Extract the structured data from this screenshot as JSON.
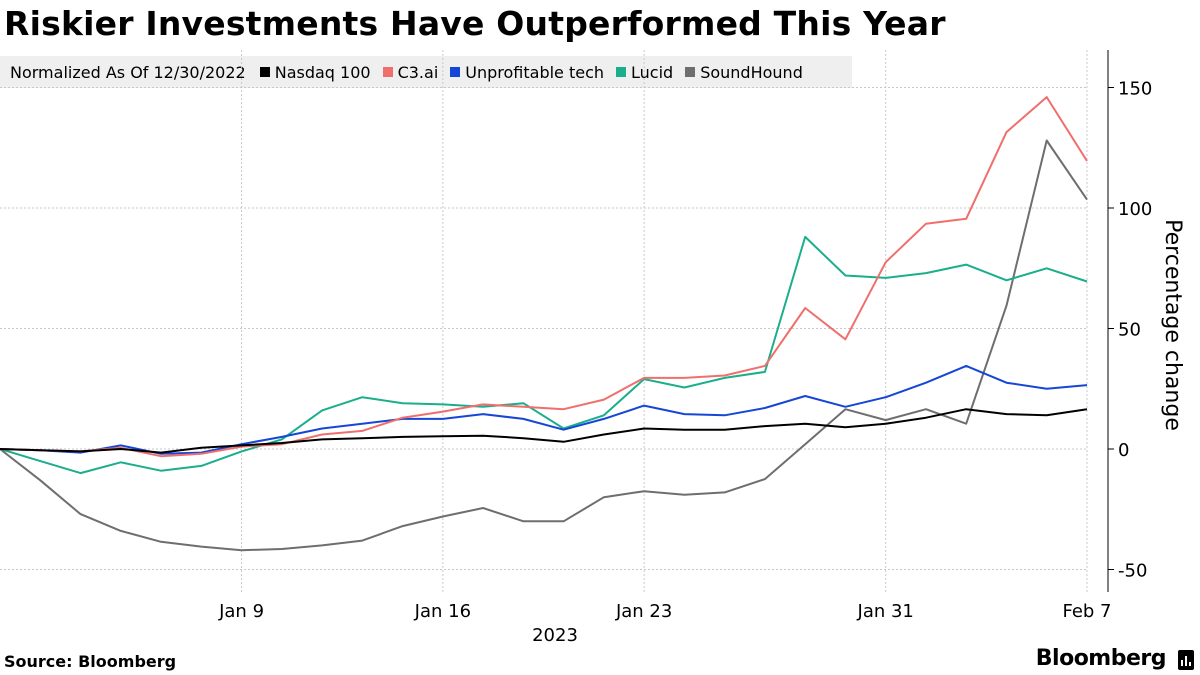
{
  "title": "Riskier Investments Have Outperformed This Year",
  "legend": {
    "note": "Normalized As Of 12/30/2022"
  },
  "chart_data": {
    "type": "line",
    "title": "Riskier Investments Have Outperformed This Year",
    "subtitle": "Normalized As Of 12/30/2022",
    "xlabel": "2023",
    "ylabel": "Percentage change",
    "ylim": [
      -60,
      165
    ],
    "xlim": [
      0,
      27
    ],
    "yticks": [
      -50,
      0,
      50,
      100,
      150
    ],
    "xticks": [
      {
        "x": 6,
        "label": "Jan 9"
      },
      {
        "x": 11,
        "label": "Jan 16"
      },
      {
        "x": 16,
        "label": "Jan 23"
      },
      {
        "x": 22,
        "label": "Jan 31"
      },
      {
        "x": 27,
        "label": "Feb 7"
      }
    ],
    "grid": true,
    "legend_position": "top",
    "series": [
      {
        "name": "Nasdaq 100",
        "color": "#000000",
        "values": [
          0,
          -0.5,
          -1,
          0,
          -1.5,
          0.5,
          1.5,
          2.5,
          4,
          4.5,
          5,
          5.3,
          5.5,
          4.5,
          3,
          6,
          8.5,
          8,
          8,
          9.5,
          10.5,
          9,
          10.5,
          13,
          16.5,
          14.5,
          14,
          16.5
        ]
      },
      {
        "name": "C3.ai",
        "color": "#ef6f6c",
        "values": [
          0,
          -0.5,
          -1,
          0.5,
          -3,
          -2,
          1,
          2,
          6,
          7.5,
          13,
          15.5,
          18.5,
          17.5,
          16.5,
          20.5,
          29.5,
          29.5,
          30.5,
          34.5,
          58.5,
          45.5,
          77.5,
          93.5,
          95.5,
          131.5,
          146,
          119.5
        ]
      },
      {
        "name": "Unprofitable tech",
        "color": "#1546d6",
        "values": [
          0,
          -0.5,
          -1.5,
          1.5,
          -2,
          -1.5,
          2,
          5,
          8.5,
          10.5,
          12.5,
          12.5,
          14.5,
          12.5,
          8,
          12.5,
          18,
          14.5,
          14,
          17,
          22,
          17.5,
          21.5,
          27.5,
          34.5,
          27.5,
          25,
          26.5
        ]
      },
      {
        "name": "Lucid",
        "color": "#1aae8c",
        "values": [
          0,
          -5,
          -10,
          -5.5,
          -9,
          -7,
          -1,
          4,
          16,
          21.5,
          19,
          18.5,
          17.5,
          19,
          8.5,
          14,
          29,
          25.5,
          29.5,
          32,
          88,
          72,
          71,
          73,
          76.5,
          70,
          75,
          69.5
        ]
      },
      {
        "name": "SoundHound",
        "color": "#6e6e6e",
        "values": [
          0,
          -13,
          -27,
          -34,
          -38.5,
          -40.5,
          -42,
          -41.5,
          -40,
          -38,
          -32,
          -28,
          -24.5,
          -30,
          -30,
          -20,
          -17.5,
          -19,
          -18,
          -12.5,
          2,
          16.5,
          12,
          16.5,
          10.5,
          59.5,
          128,
          103.5
        ]
      }
    ]
  },
  "footer": {
    "source": "Source: Bloomberg",
    "brand": "Bloomberg"
  }
}
